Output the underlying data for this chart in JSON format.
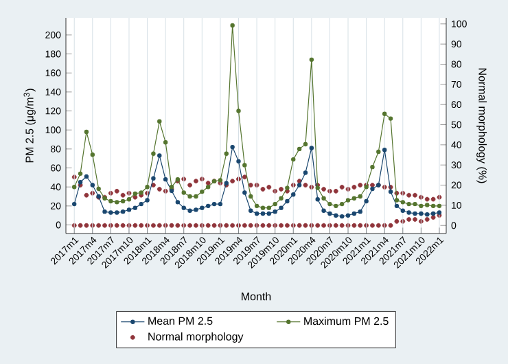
{
  "chart_data": {
    "type": "line",
    "xlabel": "Month",
    "ylabel": "PM 2.5 (μg/m$^{3}$)",
    "y2label": "Normal morphology (%)",
    "x": [
      "2017-01",
      "2017-02",
      "2017-03",
      "2017-04",
      "2017-05",
      "2017-06",
      "2017-07",
      "2017-08",
      "2017-09",
      "2017-10",
      "2017-11",
      "2017-12",
      "2018-01",
      "2018-02",
      "2018-03",
      "2018-04",
      "2018-05",
      "2018-06",
      "2018-07",
      "2018-08",
      "2018-09",
      "2018-10",
      "2018-11",
      "2018-12",
      "2019-01",
      "2019-02",
      "2019-03",
      "2019-04",
      "2019-05",
      "2019-06",
      "2019-07",
      "2019-08",
      "2019-09",
      "2019-10",
      "2019-11",
      "2019-12",
      "2020-01",
      "2020-02",
      "2020-03",
      "2020-04",
      "2020-05",
      "2020-06",
      "2020-07",
      "2020-08",
      "2020-09",
      "2020-10",
      "2020-11",
      "2020-12",
      "2021-01",
      "2021-02",
      "2021-03",
      "2021-04",
      "2021-05",
      "2021-06",
      "2021-07",
      "2021-08",
      "2021-09",
      "2021-10",
      "2021-11",
      "2021-12",
      "2022-01"
    ],
    "series": [
      {
        "name": "Mean PM 2.5",
        "color": "#1a476f",
        "values": [
          22,
          45,
          51,
          42,
          30,
          14,
          13,
          13,
          14,
          16,
          18,
          22,
          26,
          49,
          73,
          48,
          36,
          24,
          18,
          15,
          16,
          18,
          20,
          22,
          22,
          44,
          82,
          67,
          34,
          15,
          12,
          12,
          12,
          14,
          18,
          25,
          32,
          42,
          55,
          81,
          27,
          15,
          12,
          10,
          9,
          10,
          12,
          14,
          25,
          38,
          42,
          79,
          35,
          20,
          15,
          13,
          12,
          12,
          11,
          12,
          13
        ]
      },
      {
        "name": "Maximum PM 2.5",
        "color": "#55752f",
        "values": [
          40,
          54,
          98,
          74,
          38,
          28,
          25,
          24,
          25,
          27,
          33,
          34,
          40,
          75,
          109,
          87,
          40,
          48,
          34,
          30,
          30,
          35,
          40,
          46,
          47,
          75,
          210,
          120,
          63,
          30,
          20,
          18,
          18,
          22,
          28,
          39,
          69,
          80,
          85,
          174,
          39,
          28,
          22,
          20,
          22,
          26,
          28,
          30,
          40,
          61,
          77,
          117,
          112,
          26,
          24,
          22,
          22,
          20,
          21,
          20,
          20
        ]
      },
      {
        "name": "Normal morphology",
        "color": "#90353b",
        "type": "scatter",
        "axis": "y2",
        "x": [
          "2017-01",
          "2017-01",
          "2017-02",
          "2017-02",
          "2017-03",
          "2017-03",
          "2017-04",
          "2017-04",
          "2017-05",
          "2017-05",
          "2017-06",
          "2017-06",
          "2017-07",
          "2017-07",
          "2017-08",
          "2017-08",
          "2017-09",
          "2017-09",
          "2017-10",
          "2017-10",
          "2017-11",
          "2017-11",
          "2017-12",
          "2017-12",
          "2018-01",
          "2018-01",
          "2018-02",
          "2018-02",
          "2018-03",
          "2018-03",
          "2018-04",
          "2018-04",
          "2018-05",
          "2018-05",
          "2018-06",
          "2018-06",
          "2018-07",
          "2018-07",
          "2018-08",
          "2018-08",
          "2018-09",
          "2018-09",
          "2018-10",
          "2018-10",
          "2018-11",
          "2018-11",
          "2018-12",
          "2018-12",
          "2019-01",
          "2019-01",
          "2019-02",
          "2019-02",
          "2019-03",
          "2019-03",
          "2019-04",
          "2019-04",
          "2019-05",
          "2019-05",
          "2019-06",
          "2019-06",
          "2019-07",
          "2019-07",
          "2019-08",
          "2019-08",
          "2019-09",
          "2019-09",
          "2019-10",
          "2019-10",
          "2019-11",
          "2019-11",
          "2019-12",
          "2019-12",
          "2020-01",
          "2020-01",
          "2020-02",
          "2020-02",
          "2020-03",
          "2020-03",
          "2020-04",
          "2020-04",
          "2020-05",
          "2020-05",
          "2020-06",
          "2020-06",
          "2020-07",
          "2020-07",
          "2020-08",
          "2020-08",
          "2020-09",
          "2020-09",
          "2020-10",
          "2020-10",
          "2020-11",
          "2020-11",
          "2020-12",
          "2020-12",
          "2021-01",
          "2021-01",
          "2021-02",
          "2021-02",
          "2021-03",
          "2021-03",
          "2021-04",
          "2021-04",
          "2021-05",
          "2021-05",
          "2021-06",
          "2021-06",
          "2021-07",
          "2021-07",
          "2021-08",
          "2021-08",
          "2021-09",
          "2021-09",
          "2021-10",
          "2021-10",
          "2021-11",
          "2021-11",
          "2021-12",
          "2021-12",
          "2022-01",
          "2022-01"
        ],
        "values": [
          0,
          24,
          0,
          20,
          0,
          15,
          0,
          16,
          0,
          14,
          0,
          14,
          0,
          16,
          0,
          17,
          0,
          15,
          0,
          16,
          0,
          14,
          0,
          15,
          0,
          16,
          0,
          20,
          0,
          18,
          0,
          17,
          0,
          18,
          0,
          22,
          0,
          23,
          0,
          20,
          0,
          22,
          0,
          23,
          0,
          21,
          0,
          22,
          0,
          21,
          0,
          20,
          0,
          22,
          0,
          23,
          0,
          24,
          0,
          20,
          0,
          20,
          0,
          18,
          0,
          19,
          0,
          17,
          0,
          18,
          0,
          17,
          0,
          20,
          0,
          22,
          0,
          20,
          0,
          19,
          0,
          20,
          0,
          18,
          0,
          17,
          0,
          17,
          0,
          19,
          0,
          18,
          0,
          19,
          0,
          20,
          0,
          20,
          0,
          20,
          0,
          20,
          0,
          19,
          0,
          19,
          2,
          16,
          2,
          16,
          3,
          15,
          3,
          15,
          2,
          14,
          3,
          13,
          4,
          13,
          5,
          14
        ]
      }
    ],
    "xlim": [
      "2016-11-20",
      "2022-02-05"
    ],
    "xticks": [
      {
        "value": "2017-01",
        "label": "2017m1"
      },
      {
        "value": "2017-04",
        "label": "2017m4"
      },
      {
        "value": "2017-07",
        "label": "2017m7"
      },
      {
        "value": "2017-10",
        "label": "2017m10"
      },
      {
        "value": "2018-01",
        "label": "2018m1"
      },
      {
        "value": "2018-04",
        "label": "2018m4"
      },
      {
        "value": "2018-07",
        "label": "2018m7"
      },
      {
        "value": "2018-10",
        "label": "2018m10"
      },
      {
        "value": "2019-01",
        "label": "2019m1"
      },
      {
        "value": "2019-04",
        "label": "2019m4"
      },
      {
        "value": "2019-07",
        "label": "2019m7"
      },
      {
        "value": "2019-10",
        "label": "2019m10"
      },
      {
        "value": "2020-01",
        "label": "2020m1"
      },
      {
        "value": "2020-04",
        "label": "2020m4"
      },
      {
        "value": "2020-07",
        "label": "2020m7"
      },
      {
        "value": "2020-10",
        "label": "2020m10"
      },
      {
        "value": "2021-01",
        "label": "2021m1"
      },
      {
        "value": "2021-04",
        "label": "2021m4"
      },
      {
        "value": "2021-07",
        "label": "2021m7"
      },
      {
        "value": "2021-10",
        "label": "2021m10"
      },
      {
        "value": "2022-01",
        "label": "2022m1"
      }
    ],
    "ylim": [
      -9,
      218
    ],
    "yticks": [
      0,
      20,
      40,
      60,
      80,
      100,
      120,
      140,
      160,
      180,
      200
    ],
    "y2lim": [
      -4,
      103
    ],
    "y2ticks": [
      0,
      10,
      20,
      30,
      40,
      50,
      60,
      70,
      80,
      90,
      100
    ],
    "grid": "x",
    "legend": "bottom",
    "marker": "circle"
  }
}
